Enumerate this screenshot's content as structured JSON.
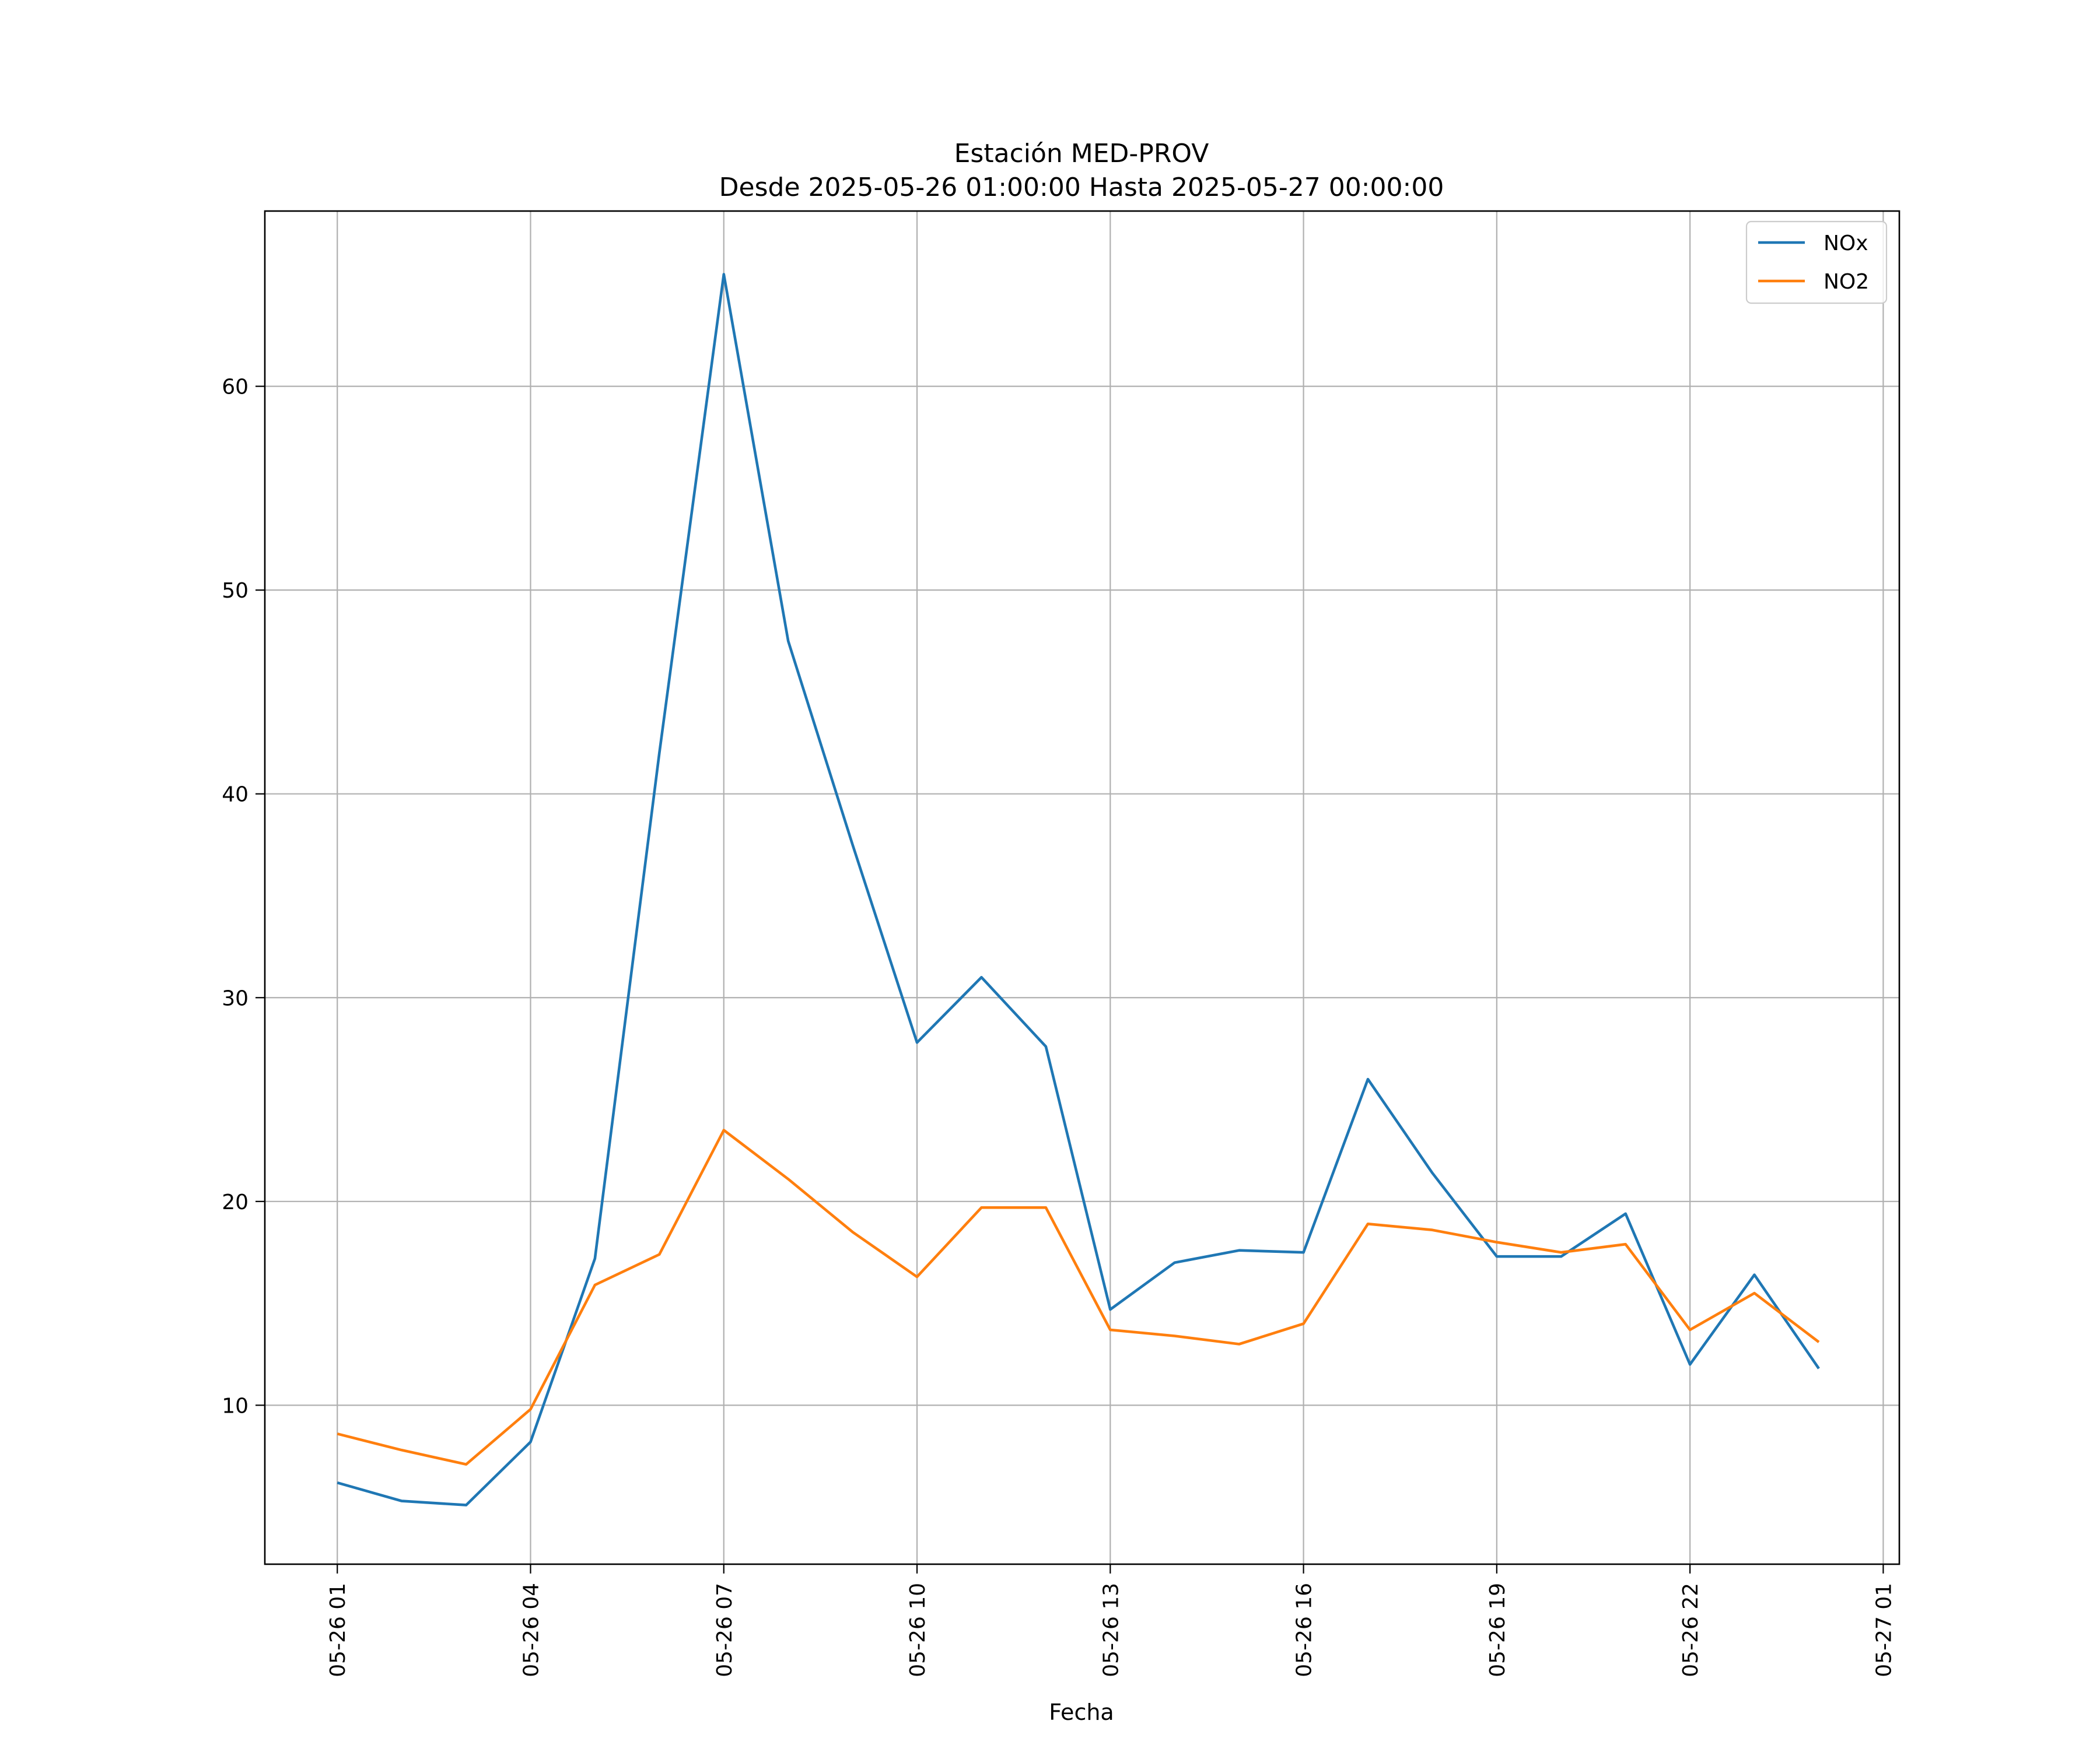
{
  "chart_data": {
    "type": "line",
    "title": [
      "Estación MED-PROV",
      "Desde 2025-05-26 01:00:00 Hasta 2025-05-27 00:00:00"
    ],
    "xlabel": "Fecha",
    "ylabel": "",
    "x_start": "2025-05-26 01:00",
    "x": [
      "2025-05-26 01:00",
      "2025-05-26 02:00",
      "2025-05-26 03:00",
      "2025-05-26 04:00",
      "2025-05-26 05:00",
      "2025-05-26 06:00",
      "2025-05-26 07:00",
      "2025-05-26 08:00",
      "2025-05-26 09:00",
      "2025-05-26 10:00",
      "2025-05-26 11:00",
      "2025-05-26 12:00",
      "2025-05-26 13:00",
      "2025-05-26 14:00",
      "2025-05-26 15:00",
      "2025-05-26 16:00",
      "2025-05-26 17:00",
      "2025-05-26 18:00",
      "2025-05-26 19:00",
      "2025-05-26 20:00",
      "2025-05-26 21:00",
      "2025-05-26 22:00",
      "2025-05-26 23:00",
      "2025-05-27 00:00"
    ],
    "x_ticks": [
      "05-26 01",
      "05-26 04",
      "05-26 07",
      "05-26 10",
      "05-26 13",
      "05-26 16",
      "05-26 19",
      "05-26 22",
      "05-27 01"
    ],
    "y_ticks": [
      10,
      20,
      30,
      40,
      50,
      60
    ],
    "ylim": [
      2.2,
      68.6
    ],
    "grid": true,
    "legend_position": "top-right",
    "series": [
      {
        "name": "NOx",
        "color": "#1f77b4",
        "values": [
          6.2,
          5.3,
          5.1,
          8.2,
          17.2,
          42.0,
          65.5,
          47.5,
          37.5,
          27.8,
          31.0,
          27.6,
          14.7,
          17.0,
          17.6,
          17.5,
          26.0,
          21.4,
          17.3,
          17.3,
          19.4,
          12.0,
          16.4,
          11.8
        ]
      },
      {
        "name": "NO2",
        "color": "#ff7f0e",
        "values": [
          8.6,
          7.8,
          7.1,
          9.8,
          15.9,
          17.4,
          23.5,
          21.1,
          18.5,
          16.3,
          19.7,
          19.7,
          13.7,
          13.4,
          13.0,
          14.0,
          18.9,
          18.6,
          18.0,
          17.5,
          17.9,
          13.7,
          15.5,
          13.1
        ]
      }
    ]
  }
}
